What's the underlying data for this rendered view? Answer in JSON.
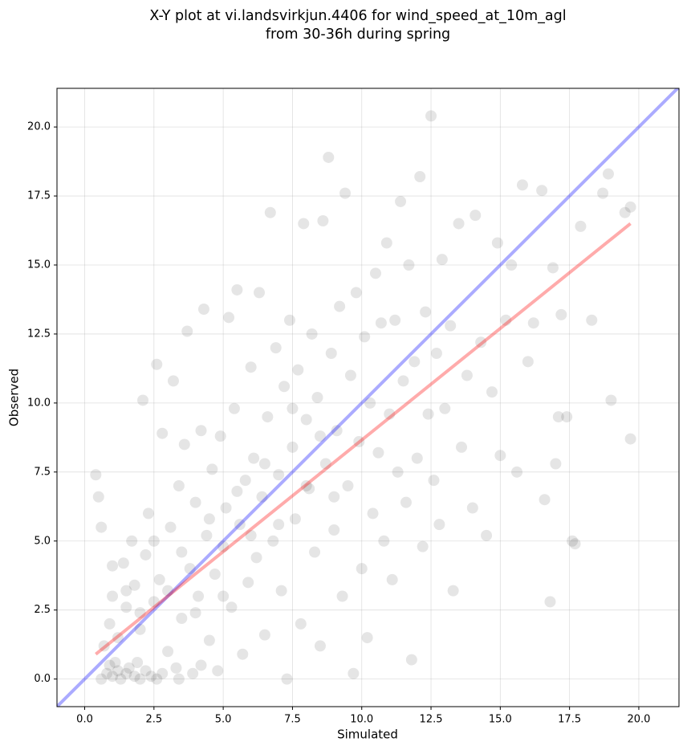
{
  "chart_data": {
    "type": "scatter",
    "title": [
      "X-Y plot at vi.landsvirkjun.4406 for wind_speed_at_10m_agl",
      "from 30-36h during spring"
    ],
    "xlabel": "Simulated",
    "ylabel": "Observed",
    "xlim": [
      -1,
      21.45
    ],
    "ylim": [
      -1,
      21.4
    ],
    "xticks": [
      {
        "value": 0,
        "label": "0.0"
      },
      2.5,
      {
        "value": 5,
        "label": "5.0"
      },
      7.5,
      {
        "value": 10,
        "label": "10.0"
      },
      12.5,
      {
        "value": 15,
        "label": "15.0"
      },
      17.5,
      {
        "value": 20,
        "label": "20.0"
      }
    ],
    "yticks": [
      {
        "value": 0,
        "label": "0.0"
      },
      2.5,
      {
        "value": 5,
        "label": "5.0"
      },
      7.5,
      {
        "value": 10,
        "label": "10.0"
      },
      12.5,
      {
        "value": 15,
        "label": "15.0"
      },
      17.5,
      {
        "value": 20,
        "label": "20.0"
      }
    ],
    "grid": true,
    "color": "#000000",
    "x": [
      0.4,
      0.5,
      0.6,
      0.8,
      0.9,
      1.0,
      1.1,
      1.2,
      1.3,
      1.5,
      1.6,
      1.8,
      2.0,
      2.2,
      2.4,
      2.6,
      0.7,
      0.9,
      1.0,
      1.2,
      1.4,
      1.5,
      1.7,
      1.8,
      2.0,
      2.1,
      2.2,
      2.3,
      2.5,
      2.6,
      2.7,
      2.8,
      3.0,
      3.1,
      3.2,
      3.3,
      3.4,
      3.5,
      3.6,
      3.7,
      3.8,
      3.9,
      4.0,
      4.1,
      4.2,
      4.3,
      4.4,
      4.5,
      4.6,
      4.7,
      4.8,
      4.9,
      5.0,
      5.1,
      5.2,
      5.3,
      5.4,
      5.5,
      5.6,
      5.7,
      5.8,
      5.9,
      6.0,
      6.1,
      6.2,
      6.3,
      6.4,
      6.5,
      6.6,
      6.7,
      6.8,
      6.9,
      7.0,
      7.1,
      7.2,
      7.3,
      7.4,
      7.5,
      7.6,
      7.7,
      7.8,
      7.9,
      8.0,
      8.1,
      8.2,
      8.3,
      8.4,
      8.5,
      8.6,
      8.7,
      8.8,
      8.9,
      9.0,
      9.1,
      9.2,
      9.3,
      9.4,
      9.5,
      9.6,
      9.7,
      9.8,
      9.9,
      10.0,
      10.1,
      10.2,
      10.3,
      10.4,
      10.5,
      10.6,
      10.7,
      10.8,
      10.9,
      11.0,
      11.1,
      11.2,
      11.3,
      11.4,
      11.5,
      11.6,
      11.7,
      11.8,
      11.9,
      12.0,
      12.1,
      12.2,
      12.3,
      12.4,
      12.5,
      12.6,
      12.7,
      12.8,
      12.9,
      13.0,
      13.2,
      13.3,
      13.5,
      13.6,
      13.8,
      14.0,
      14.1,
      14.3,
      14.5,
      14.7,
      14.9,
      15.0,
      15.2,
      15.4,
      15.6,
      15.8,
      16.0,
      16.2,
      16.5,
      16.6,
      16.8,
      16.9,
      17.0,
      17.1,
      17.2,
      17.4,
      17.6,
      17.7,
      17.9,
      18.3,
      18.7,
      18.9,
      19.0,
      19.5,
      19.7,
      19.7,
      3.0,
      3.5,
      4.0,
      4.5,
      5.0,
      5.5,
      6.0,
      6.5,
      7.0,
      7.5,
      8.0,
      8.5,
      9.0,
      2.0,
      2.5,
      1.5,
      1.0,
      0.6,
      1.9,
      2.8,
      3.4,
      4.2
    ],
    "values": [
      7.4,
      6.6,
      5.5,
      0.2,
      0.5,
      0.1,
      0.6,
      0.3,
      0.0,
      0.2,
      0.4,
      0.1,
      0.0,
      0.3,
      0.1,
      0.0,
      1.2,
      2.0,
      3.0,
      1.5,
      4.2,
      2.6,
      5.0,
      3.4,
      1.8,
      10.1,
      4.5,
      6.0,
      2.8,
      11.4,
      3.6,
      8.9,
      1.0,
      5.5,
      10.8,
      0.4,
      7.0,
      2.2,
      8.5,
      12.6,
      4.0,
      0.2,
      6.4,
      3.0,
      9.0,
      13.4,
      5.2,
      1.4,
      7.6,
      3.8,
      0.3,
      8.8,
      4.8,
      6.2,
      13.1,
      2.6,
      9.8,
      14.1,
      5.6,
      0.9,
      7.2,
      3.5,
      11.3,
      8.0,
      4.4,
      14.0,
      6.6,
      1.6,
      9.5,
      16.9,
      5.0,
      12.0,
      7.4,
      3.2,
      10.6,
      0.0,
      13.0,
      8.4,
      5.8,
      11.2,
      2.0,
      16.5,
      9.4,
      6.9,
      12.5,
      4.6,
      10.2,
      1.2,
      16.6,
      7.8,
      18.9,
      11.8,
      5.4,
      9.0,
      13.5,
      3.0,
      17.6,
      7.0,
      11.0,
      0.2,
      14.0,
      8.6,
      4.0,
      12.4,
      1.5,
      10.0,
      6.0,
      14.7,
      8.2,
      12.9,
      5.0,
      15.8,
      9.6,
      3.6,
      13.0,
      7.5,
      17.3,
      10.8,
      6.4,
      15.0,
      0.7,
      11.5,
      8.0,
      18.2,
      4.8,
      13.3,
      9.6,
      20.4,
      7.2,
      11.8,
      5.6,
      15.2,
      9.8,
      12.8,
      3.2,
      16.5,
      8.4,
      11.0,
      6.2,
      16.8,
      12.2,
      5.2,
      10.4,
      15.8,
      8.1,
      13.0,
      15.0,
      7.5,
      17.9,
      11.5,
      12.9,
      17.7,
      6.5,
      2.8,
      14.9,
      7.8,
      9.5,
      13.2,
      9.5,
      5.0,
      4.9,
      16.4,
      13.0,
      17.6,
      18.3,
      10.1,
      16.9,
      8.7,
      17.1,
      3.2,
      4.6,
      2.4,
      5.8,
      3.0,
      6.8,
      5.2,
      7.8,
      5.6,
      9.8,
      7.0,
      8.8,
      6.6,
      2.4,
      5.0,
      3.2,
      4.1,
      0.0,
      0.6,
      0.2,
      0.0,
      0.5
    ],
    "lines": [
      {
        "color": "#0000ff",
        "x": [
          -1,
          21.45
        ],
        "y": [
          -1,
          21.45
        ]
      },
      {
        "color": "#ff0000",
        "x": [
          0.4,
          19.7
        ],
        "y": [
          0.9,
          16.5
        ]
      }
    ]
  }
}
